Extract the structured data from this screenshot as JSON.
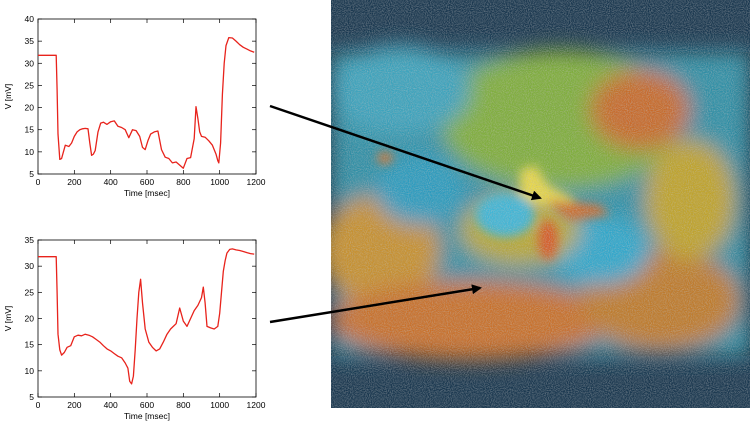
{
  "chart_data": [
    {
      "type": "line",
      "title": "",
      "xlabel": "Time [msec]",
      "ylabel": "V [mV]",
      "xlim": [
        0,
        1200
      ],
      "ylim": [
        5,
        40
      ],
      "xticks": [
        0,
        200,
        400,
        600,
        800,
        1000,
        1200
      ],
      "yticks": [
        5,
        10,
        15,
        20,
        25,
        30,
        35,
        40
      ],
      "grid": false,
      "series": [
        {
          "color": "#e8231c",
          "x": [
            0,
            20,
            60,
            100,
            105,
            110,
            120,
            130,
            140,
            150,
            170,
            185,
            200,
            215,
            230,
            245,
            260,
            275,
            285,
            295,
            305,
            315,
            330,
            345,
            360,
            380,
            400,
            420,
            440,
            460,
            480,
            500,
            520,
            540,
            560,
            575,
            590,
            605,
            620,
            640,
            660,
            680,
            700,
            720,
            740,
            760,
            780,
            800,
            820,
            840,
            860,
            870,
            880,
            890,
            900,
            920,
            940,
            960,
            980,
            990,
            995,
            1005,
            1015,
            1025,
            1035,
            1050,
            1070,
            1090,
            1110,
            1130,
            1150,
            1170,
            1190
          ],
          "y": [
            31.8,
            31.8,
            31.8,
            31.8,
            24,
            14,
            8.3,
            8.5,
            10,
            11.5,
            11.2,
            12,
            13.5,
            14.5,
            15,
            15.2,
            15.3,
            15.2,
            12,
            9.2,
            9.5,
            10.3,
            14.5,
            16.5,
            16.7,
            16.2,
            16.8,
            17,
            15.8,
            15.5,
            15,
            13.2,
            15,
            14.8,
            13.5,
            11,
            10.5,
            12.5,
            14,
            14.5,
            14.7,
            10.5,
            8.8,
            8.5,
            7.5,
            7.7,
            7,
            6.3,
            8.5,
            8.7,
            13,
            20.2,
            17.5,
            14.5,
            13.5,
            13.3,
            12.5,
            11.5,
            9.5,
            8,
            7.5,
            12,
            23,
            30,
            34,
            35.8,
            35.7,
            35,
            34.2,
            33.6,
            33.2,
            32.8,
            32.5
          ]
        }
      ]
    },
    {
      "type": "line",
      "title": "",
      "xlabel": "Time [msec]",
      "ylabel": "V [mV]",
      "xlim": [
        0,
        1200
      ],
      "ylim": [
        5,
        35
      ],
      "xticks": [
        0,
        200,
        400,
        600,
        800,
        1000,
        1200
      ],
      "yticks": [
        5,
        10,
        15,
        20,
        25,
        30,
        35
      ],
      "grid": false,
      "series": [
        {
          "color": "#e8231c",
          "x": [
            0,
            20,
            60,
            100,
            105,
            110,
            120,
            130,
            145,
            160,
            180,
            200,
            220,
            240,
            260,
            280,
            300,
            320,
            340,
            360,
            380,
            400,
            420,
            440,
            460,
            480,
            495,
            505,
            515,
            525,
            535,
            545,
            555,
            565,
            575,
            590,
            610,
            630,
            650,
            670,
            690,
            710,
            730,
            745,
            760,
            780,
            800,
            820,
            840,
            860,
            880,
            900,
            910,
            920,
            930,
            950,
            970,
            990,
            1000,
            1010,
            1020,
            1030,
            1040,
            1055,
            1070,
            1090,
            1110,
            1130,
            1150,
            1170,
            1190
          ],
          "y": [
            31.8,
            31.8,
            31.8,
            31.8,
            25,
            17,
            14,
            13,
            13.5,
            14.5,
            14.8,
            16.5,
            16.8,
            16.7,
            17,
            16.8,
            16.5,
            16,
            15.5,
            14.8,
            14.2,
            13.8,
            13.3,
            12.8,
            12.5,
            11.5,
            10.5,
            8,
            7.5,
            9,
            14,
            20,
            25,
            27.5,
            23,
            18,
            15.5,
            14.5,
            13.8,
            14.2,
            15.5,
            17,
            18,
            18.5,
            19,
            22,
            19.5,
            18.5,
            20,
            21.5,
            22.5,
            24,
            26,
            23,
            18.5,
            18.2,
            18,
            18.5,
            21,
            25,
            29,
            31,
            32.5,
            33.2,
            33.3,
            33.1,
            33,
            32.8,
            32.6,
            32.4,
            32.3
          ]
        }
      ]
    }
  ],
  "image_panel": {
    "description_colors": [
      "#1d3c5a",
      "#37a8c8",
      "#c9b32e",
      "#d0642a"
    ]
  }
}
